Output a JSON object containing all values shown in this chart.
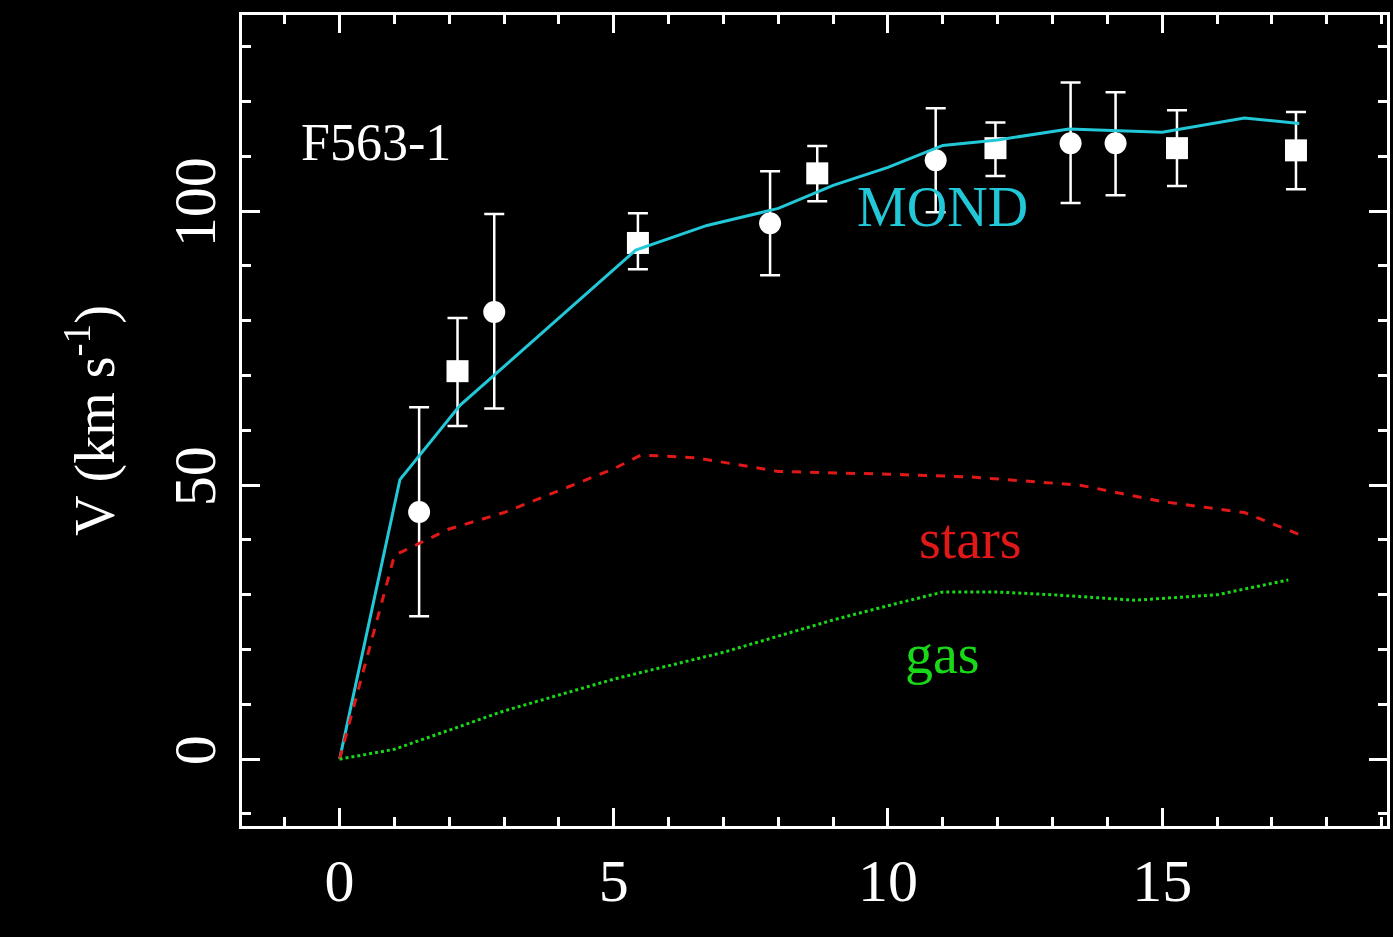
{
  "chart_data": {
    "type": "scatter",
    "ylabel": "V (km s$^{-1}$)",
    "annotations": [
      "F563-1"
    ],
    "xlim": [
      -1.78,
      19.1
    ],
    "ylim": [
      -12.2,
      135.8
    ],
    "xticks": [
      0,
      5,
      10,
      15
    ],
    "yticks": [
      0,
      50,
      100
    ],
    "grid": false,
    "series": [
      {
        "color": "#ffffff",
        "marker": "circle",
        "x": [
          1.45,
          2.82,
          7.85,
          10.87,
          13.33,
          14.15
        ],
        "values": [
          45.1,
          81.6,
          97.8,
          109.3,
          112.4,
          112.4
        ],
        "errors": [
          [
            26.1,
            64.2
          ],
          [
            64.0,
            99.5
          ],
          [
            88.3,
            107.3
          ],
          [
            99.8,
            118.8
          ],
          [
            101.5,
            123.5
          ],
          [
            102.9,
            121.7
          ]
        ]
      },
      {
        "color": "#ffffff",
        "marker": "square",
        "x": [
          2.15,
          5.44,
          8.71,
          11.96,
          15.27,
          17.44
        ],
        "values": [
          70.8,
          94.2,
          106.9,
          111.5,
          111.5,
          111.1
        ],
        "errors": [
          [
            60.8,
            80.5
          ],
          [
            89.4,
            99.6
          ],
          [
            101.8,
            111.9
          ],
          [
            106.4,
            116.2
          ],
          [
            104.6,
            118.4
          ],
          [
            104.0,
            118.1
          ]
        ]
      },
      {
        "type": "line",
        "name": "MOND",
        "color": "#22c8d8",
        "line_style": "solid",
        "x": [
          0,
          1.1,
          2.2,
          5.4,
          6.7,
          8,
          9,
          10,
          11,
          12,
          13.3,
          15,
          16.5,
          17.5
        ],
        "values": [
          0,
          51,
          64.6,
          92.9,
          97.4,
          100.5,
          104.7,
          108,
          112,
          113,
          115,
          114.4,
          117,
          116
        ]
      },
      {
        "type": "line",
        "name": "stars",
        "color": "#e01818",
        "line_style": "dashed",
        "x": [
          0,
          1,
          2,
          3,
          5,
          5.5,
          6.5,
          8,
          10,
          11.5,
          13.5,
          15,
          16.5,
          17.5
        ],
        "values": [
          0,
          37.2,
          42,
          45,
          53,
          55.5,
          55,
          52.5,
          52,
          51.5,
          50,
          47,
          45,
          41
        ]
      },
      {
        "type": "line",
        "name": "gas",
        "color": "#18d818",
        "line_style": "dotted",
        "x": [
          0,
          1,
          3,
          5,
          7,
          9,
          10,
          11,
          12,
          13,
          14.5,
          16,
          17.3
        ],
        "values": [
          0,
          1.8,
          8.8,
          14.6,
          19.5,
          25.4,
          28,
          30.5,
          30.5,
          30,
          29,
          30,
          32.7
        ]
      }
    ]
  }
}
